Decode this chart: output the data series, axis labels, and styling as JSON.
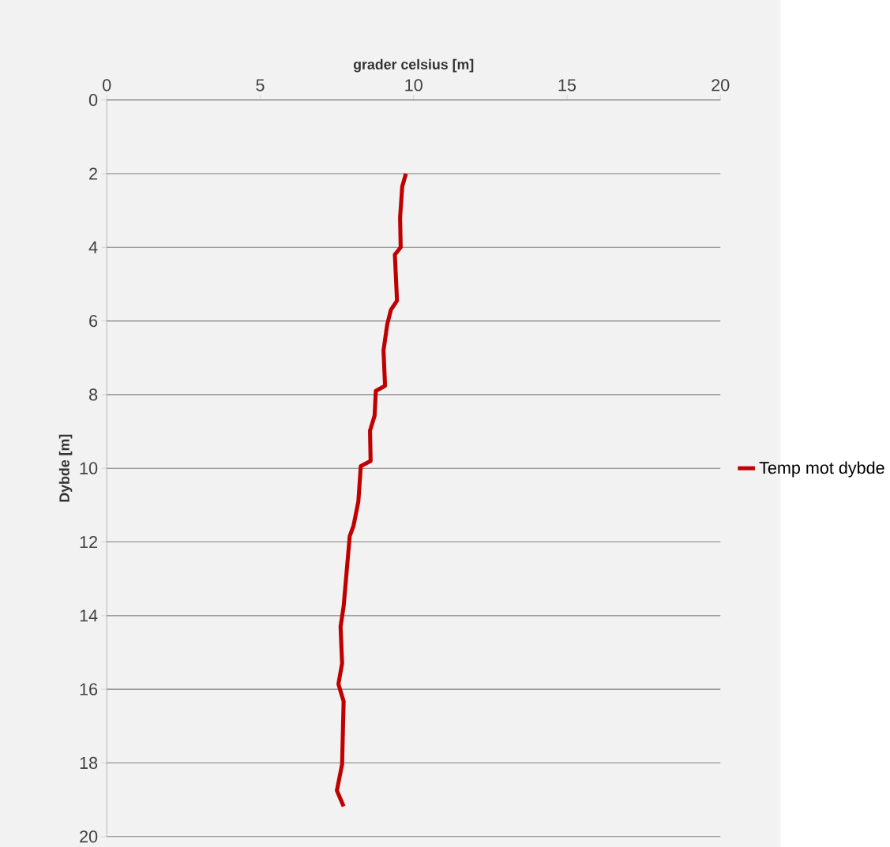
{
  "chart_data": {
    "type": "line",
    "xlabel": "grader celsius [m]",
    "ylabel": "Dybde [m]",
    "xlim": [
      0,
      20
    ],
    "xticks": [
      0,
      5,
      10,
      15,
      20
    ],
    "ylim": [
      20,
      0
    ],
    "yticks": [
      0,
      2,
      4,
      6,
      8,
      10,
      12,
      14,
      16,
      18,
      20
    ],
    "grid": "y",
    "legend": "right",
    "marker": "none",
    "line_style": "solid",
    "series": [
      {
        "name": "Temp mot dybde",
        "color": "#c00000",
        "x": [
          9.75,
          9.63,
          9.56,
          9.58,
          9.39,
          9.46,
          9.26,
          9.14,
          9.02,
          9.07,
          8.77,
          8.73,
          8.58,
          8.6,
          8.28,
          8.2,
          8.04,
          7.92,
          7.84,
          7.72,
          7.62,
          7.67,
          7.55,
          7.72,
          7.67,
          7.5,
          7.72
        ],
        "values": [
          2.0,
          2.35,
          3.2,
          4.0,
          4.2,
          5.45,
          5.7,
          6.1,
          6.8,
          7.76,
          7.9,
          8.57,
          8.98,
          9.8,
          9.94,
          10.9,
          11.57,
          11.84,
          12.6,
          13.75,
          14.3,
          15.3,
          15.86,
          16.33,
          18.04,
          18.75,
          19.18
        ]
      }
    ]
  }
}
